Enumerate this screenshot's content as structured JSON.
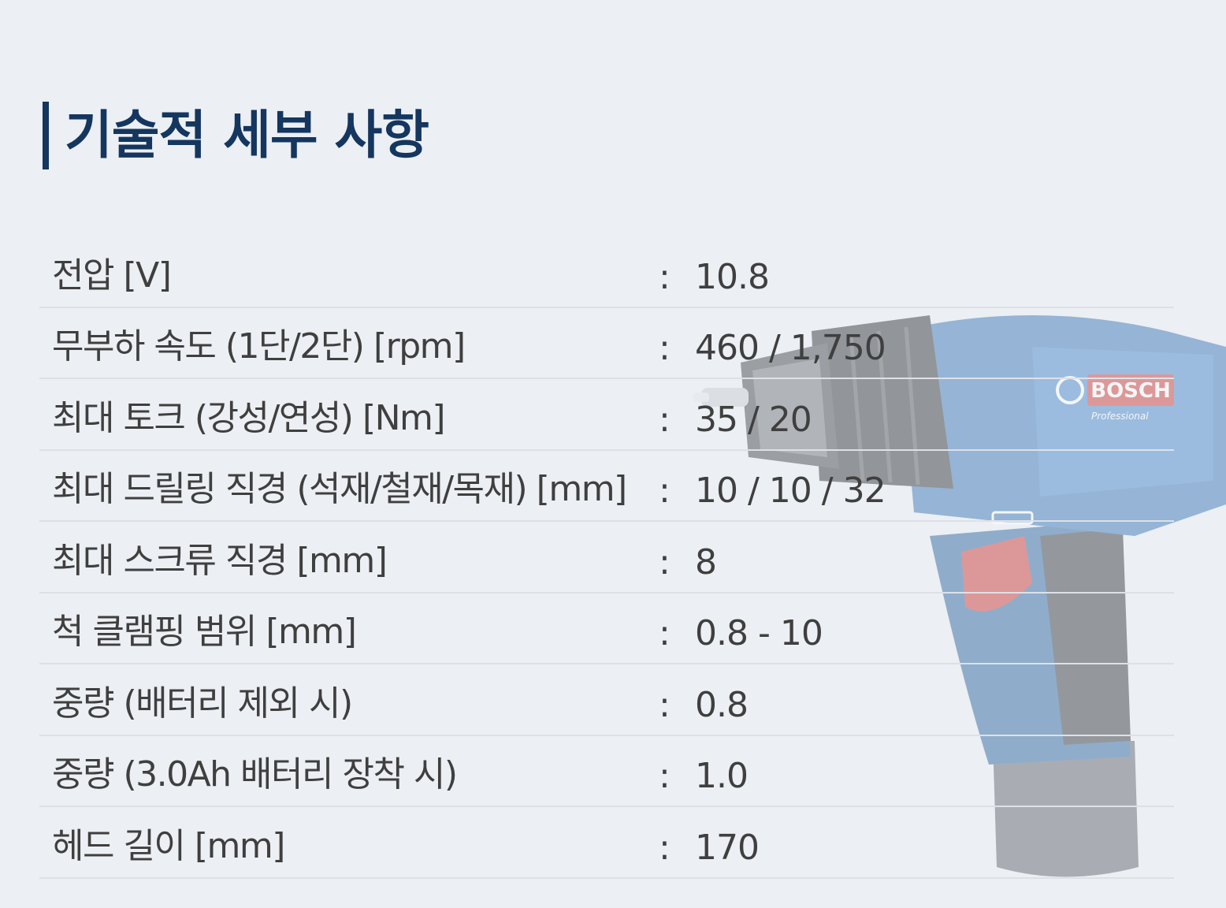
{
  "section": {
    "title": "기술적 세부 사항"
  },
  "brand": {
    "logo_text": "BOSCH",
    "line_text": "Professional"
  },
  "colors": {
    "title": "#14365f",
    "text": "#3f3f3f",
    "background": "#eceff3",
    "divider": "#dde1e7"
  },
  "specs": [
    {
      "label": "전압 [V]",
      "colon": ":",
      "value": "10.8"
    },
    {
      "label": "무부하 속도 (1단/2단) [rpm]",
      "colon": ":",
      "value": "460 / 1,750"
    },
    {
      "label": "최대 토크 (강성/연성) [Nm]",
      "colon": ":",
      "value": "35 / 20"
    },
    {
      "label": "최대 드릴링 직경 (석재/철재/목재) [mm]",
      "colon": ":",
      "value": "10 / 10 / 32"
    },
    {
      "label": "최대 스크류 직경 [mm]",
      "colon": ":",
      "value": "8"
    },
    {
      "label": "척 클램핑 범위 [mm]",
      "colon": ":",
      "value": "0.8 - 10"
    },
    {
      "label": "중량 (배터리 제외 시)",
      "colon": ":",
      "value": "0.8"
    },
    {
      "label": "중량 (3.0Ah 배터리 장착 시)",
      "colon": ":",
      "value": "1.0"
    },
    {
      "label": "헤드 길이 [mm]",
      "colon": ":",
      "value": "170"
    }
  ]
}
